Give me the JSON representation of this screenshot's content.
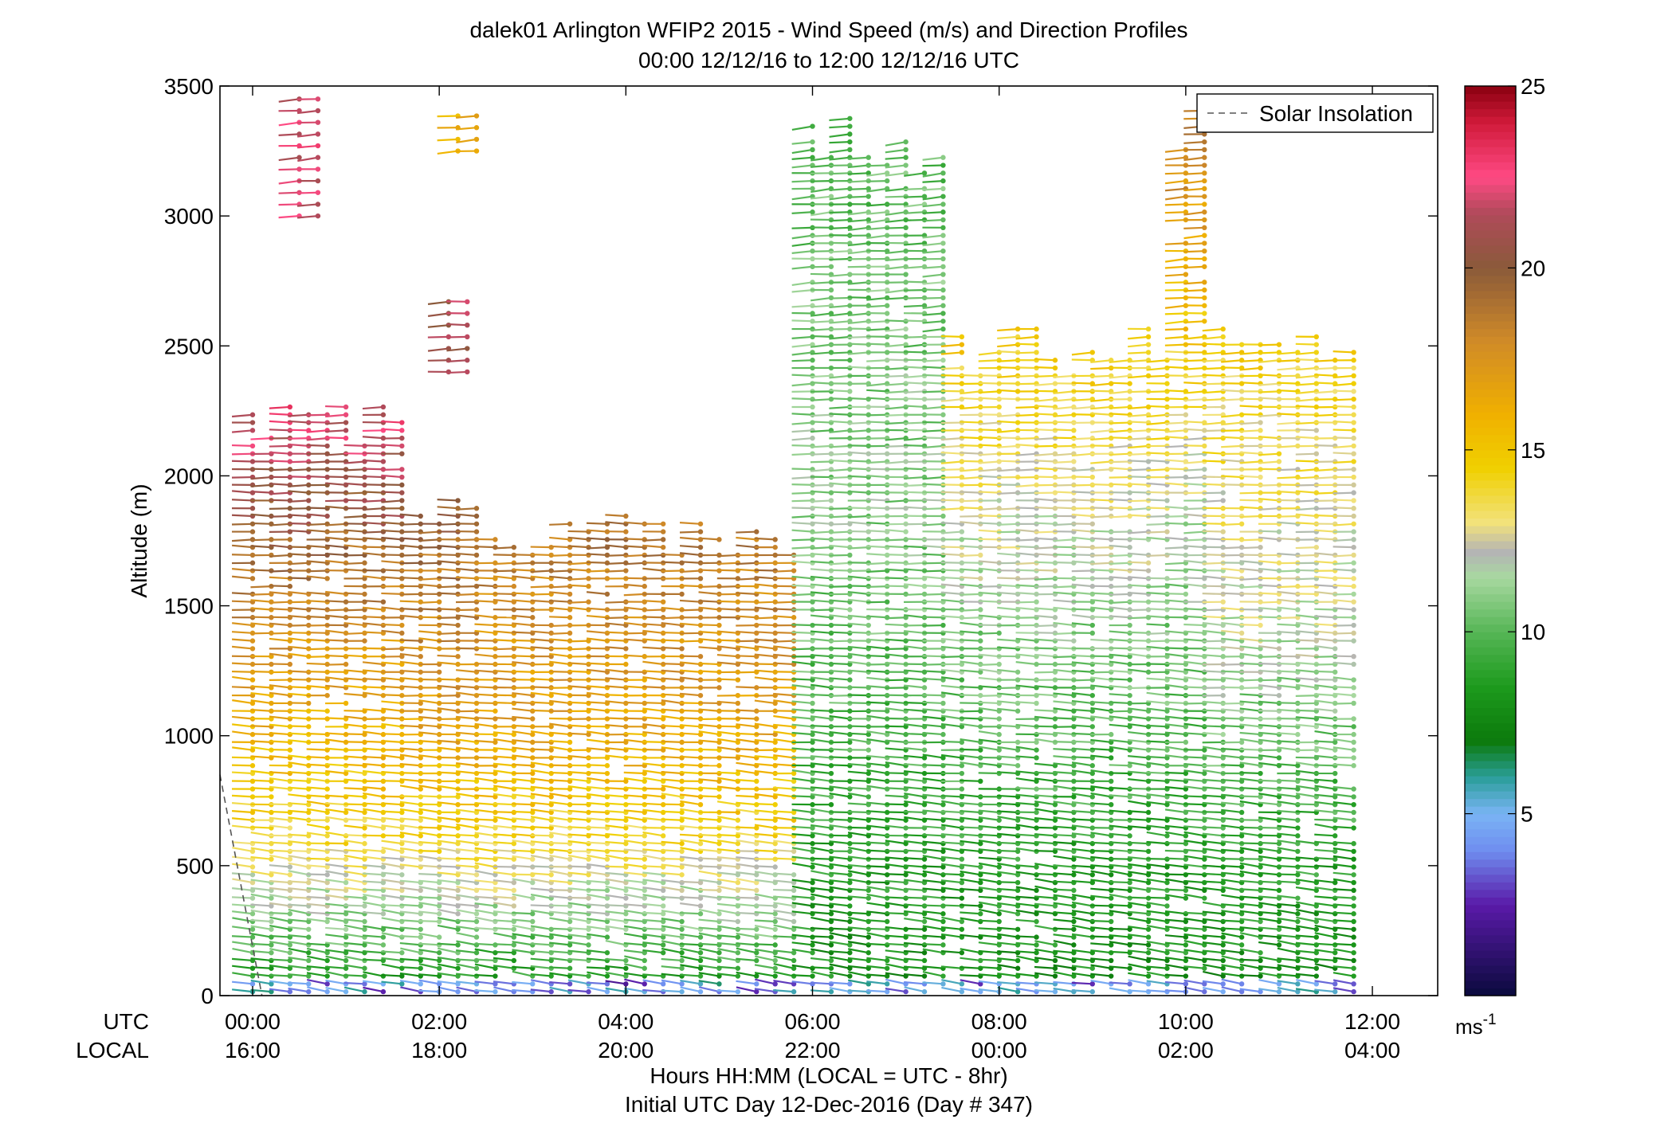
{
  "chart_data": {
    "type": "scatter",
    "title": "dalek01 Arlington WFIP2 2015 - Wind Speed (m/s) and Direction Profiles",
    "subtitle": "00:00 12/12/16 to 12:00 12/12/16  UTC",
    "ylabel": "Altitude (m)",
    "xlabel": "Hours HH:MM  (LOCAL = UTC - 8hr)",
    "xlabel2": "Initial UTC Day 12-Dec-2016 (Day # 347)",
    "ylim": [
      0,
      3500
    ],
    "xlim_hours": [
      -0.35,
      12.7
    ],
    "y_ticks": [
      0,
      500,
      1000,
      1500,
      2000,
      2500,
      3000,
      3500
    ],
    "utc_row_label": "UTC",
    "local_row_label": "LOCAL",
    "utc_ticks": [
      "00:00",
      "02:00",
      "04:00",
      "06:00",
      "08:00",
      "10:00",
      "12:00"
    ],
    "local_ticks": [
      "16:00",
      "18:00",
      "20:00",
      "22:00",
      "00:00",
      "02:00",
      "04:00"
    ],
    "tick_hours": [
      0,
      2,
      4,
      6,
      8,
      10,
      12
    ],
    "legend": {
      "entry": "Solar Insolation",
      "placement": "top-right",
      "style": "dashed",
      "color": "#555555"
    },
    "colorbar": {
      "unit_label": "ms",
      "unit_exp": "-1",
      "ticks": [
        5,
        10,
        15,
        20,
        25
      ],
      "range": [
        0,
        25
      ],
      "stops": [
        {
          "v": 0,
          "c": "#0a0a3c"
        },
        {
          "v": 2.5,
          "c": "#5a1aa8"
        },
        {
          "v": 4,
          "c": "#6f8ef0"
        },
        {
          "v": 5,
          "c": "#7ab4f5"
        },
        {
          "v": 6,
          "c": "#2a9e9a"
        },
        {
          "v": 7,
          "c": "#0c7a0c"
        },
        {
          "v": 8.5,
          "c": "#1d9a1d"
        },
        {
          "v": 10,
          "c": "#56b656"
        },
        {
          "v": 11.5,
          "c": "#a8d8a0"
        },
        {
          "v": 12.2,
          "c": "#b4b4b4"
        },
        {
          "v": 13,
          "c": "#f2e27c"
        },
        {
          "v": 14.5,
          "c": "#f0d000"
        },
        {
          "v": 16,
          "c": "#f0b000"
        },
        {
          "v": 18,
          "c": "#d08a28"
        },
        {
          "v": 20,
          "c": "#8a5a3a"
        },
        {
          "v": 21.5,
          "c": "#b04a5a"
        },
        {
          "v": 22.5,
          "c": "#ff4a84"
        },
        {
          "v": 24,
          "c": "#d01a3a"
        },
        {
          "v": 25,
          "c": "#8a0010"
        }
      ]
    },
    "solar_insolation_line": [
      {
        "x": -0.35,
        "y": 850
      },
      {
        "x": 0.1,
        "y": 0
      }
    ],
    "profile_interval_hours": 0.2,
    "profile_range_hours": [
      0,
      11.8
    ],
    "gate_spacing_m": 30,
    "speed_model": {
      "surface_speed": 8.0,
      "surface_ramp_m": 600,
      "segments": [
        {
          "t0": 0,
          "t1": 1.6,
          "top": 2300,
          "upper_speed": 22.5,
          "mid_speed": 17,
          "low_speed": 14
        },
        {
          "t0": 1.6,
          "t1": 2.5,
          "top": 2000,
          "upper_speed": 20,
          "mid_speed": 17,
          "low_speed": 14
        },
        {
          "t0": 2.5,
          "t1": 6.0,
          "top": 1850,
          "upper_speed": 19,
          "mid_speed": 16.5,
          "low_speed": 14
        },
        {
          "t0": 6.0,
          "t1": 7.6,
          "top": 3450,
          "upper_speed": 10,
          "mid_speed": 11,
          "low_speed": 9
        },
        {
          "t0": 7.6,
          "t1": 9.8,
          "top": 2600,
          "upper_speed": 15,
          "mid_speed": 11,
          "low_speed": 9
        },
        {
          "t0": 9.8,
          "t1": 10.3,
          "top": 3450,
          "upper_speed": 19,
          "mid_speed": 12,
          "low_speed": 9
        },
        {
          "t0": 10.3,
          "t1": 11.8,
          "top": 2600,
          "upper_speed": 14.5,
          "mid_speed": 12,
          "low_speed": 9
        }
      ],
      "sparse_upper": [
        {
          "t": 0.5,
          "from": 3000,
          "to": 3480,
          "speed": 22
        },
        {
          "t": 2.2,
          "from": 3250,
          "to": 3400,
          "speed": 16
        },
        {
          "t": 2.1,
          "from": 2400,
          "to": 2700,
          "speed": 21
        }
      ]
    },
    "direction_note": "barbs oriented from the south-southwest rotating westerly aloft"
  }
}
